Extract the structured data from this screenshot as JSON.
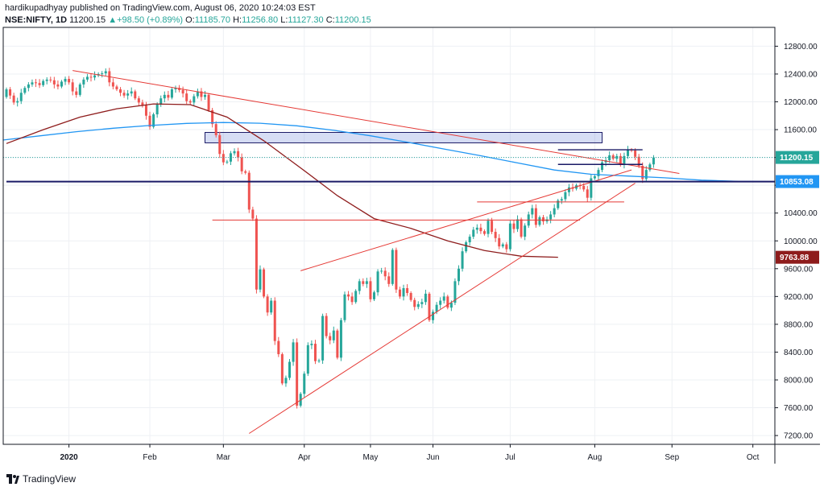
{
  "header": {
    "line1": "hardikupadhyay published on TradingView.com, August 06, 2020 10:24:03 EST",
    "symbol": "NSE:NIFTY, 1D",
    "last": "11200.15",
    "change": "+98.50 (+0.89%)",
    "o_label": "O:",
    "o_value": "11185.70",
    "h_label": "H:",
    "h_value": "11256.80",
    "l_label": "L:",
    "l_value": "11127.30",
    "c_label": "C:",
    "c_value": "11200.15"
  },
  "footer": {
    "brand": "TradingView"
  },
  "colors": {
    "up": "#26a69a",
    "down": "#ef5350",
    "ma_short": "#8e1c1c",
    "ma_long": "#2196f3",
    "trend": "#e53935",
    "level": "#1a1a66"
  },
  "chart_data": {
    "type": "candlestick",
    "x_labels": [
      "2020",
      "Feb",
      "Mar",
      "Apr",
      "May",
      "Jun",
      "Jul",
      "Aug",
      "Sep",
      "Oct"
    ],
    "y_ticks": [
      7200,
      7600,
      8000,
      8400,
      8800,
      9200,
      9600,
      10000,
      10400,
      10800,
      11200,
      11600,
      12000,
      12400,
      12800
    ],
    "y_tick_labels": [
      "7200.00",
      "7600.00",
      "8000.00",
      "8400.00",
      "8800.00",
      "9200.00",
      "9600.00",
      "10000.00",
      "10400.00",
      "10800.00",
      "11200.00",
      "11600.00",
      "12000.00",
      "12400.00",
      "12800.00"
    ],
    "ylim": [
      7000,
      12950
    ],
    "price_labels": [
      {
        "value": 11200.15,
        "text": "11200.15",
        "color": "#26a69a"
      },
      {
        "value": 10853.08,
        "text": "10853.08",
        "color": "#2196f3"
      },
      {
        "value": 9763.88,
        "text": "9763.88",
        "color": "#8e1c1c"
      }
    ],
    "closes": [
      12180,
      12090,
      11990,
      12010,
      12130,
      12200,
      12250,
      12280,
      12270,
      12240,
      12300,
      12320,
      12310,
      12250,
      12220,
      12290,
      12330,
      12280,
      12150,
      12100,
      12250,
      12320,
      12360,
      12350,
      12380,
      12400,
      12410,
      12440,
      12280,
      12220,
      12180,
      12130,
      12090,
      12120,
      12150,
      12050,
      11990,
      11950,
      11800,
      11640,
      11820,
      11960,
      12050,
      12100,
      12060,
      12180,
      12200,
      12170,
      12120,
      12010,
      11990,
      12080,
      12150,
      12070,
      12100,
      11880,
      11680,
      11520,
      11250,
      11130,
      11140,
      11260,
      11290,
      11200,
      11000,
      10980,
      10450,
      10320,
      9300,
      9590,
      9200,
      8970,
      9140,
      8560,
      8370,
      7950,
      8030,
      8260,
      8540,
      7630,
      7800,
      8090,
      8500,
      8520,
      8270,
      8280,
      8920,
      8630,
      8570,
      8710,
      8320,
      8860,
      9230,
      9200,
      9120,
      9280,
      9420,
      9380,
      9420,
      9160,
      9260,
      9560,
      9570,
      9490,
      9380,
      9870,
      9300,
      9200,
      9320,
      9250,
      9150,
      9050,
      9090,
      9120,
      9240,
      8860,
      8980,
      9080,
      9140,
      9200,
      9040,
      9110,
      9420,
      9600,
      9850,
      9980,
      10060,
      10160,
      10190,
      10140,
      10100,
      10290,
      10130,
      10040,
      9920,
      9950,
      9880,
      10250,
      10170,
      10310,
      10060,
      10220,
      10380,
      10470,
      10230,
      10340,
      10280,
      10310,
      10380,
      10470,
      10580,
      10600,
      10700,
      10770,
      10750,
      10800,
      10790,
      10740,
      10620,
      10900,
      10930,
      11020,
      11130,
      11160,
      11230,
      11180,
      11220,
      11100,
      11220,
      11310,
      11300,
      11210,
      11080,
      10890,
      11020,
      11100,
      11200
    ],
    "ma_long": [
      11450,
      11510,
      11570,
      11620,
      11660,
      11690,
      11702,
      11692,
      11655,
      11590,
      11512,
      11420,
      11322,
      11224,
      11121,
      11019,
      10958,
      10933,
      10907,
      10873,
      10856,
      10853
    ],
    "ma_short": [
      11400,
      11600,
      11780,
      11900,
      11970,
      11960,
      11780,
      11440,
      11050,
      10650,
      10320,
      10180,
      10000,
      9860,
      9780,
      9764
    ],
    "ranges": [
      {
        "from": 11410,
        "to": 11560
      }
    ],
    "lines": [
      {
        "from": [
          18,
          12450
        ],
        "to": [
          183,
          10970
        ]
      },
      {
        "from": [
          66,
          7230
        ],
        "to": [
          171,
          10830
        ]
      },
      {
        "from": [
          80,
          9570
        ],
        "to": [
          170,
          11020
        ]
      },
      {
        "from": [
          56,
          10300
        ],
        "to": [
          156,
          10300
        ]
      },
      {
        "from": [
          128,
          10560
        ],
        "to": [
          168,
          10560
        ]
      },
      {
        "from": [
          150,
          11310
        ],
        "to": [
          173,
          11310
        ]
      },
      {
        "from": [
          150,
          11100
        ],
        "to": [
          173,
          11100
        ]
      },
      {
        "from": 0,
        "to": 217,
        "value": 10853.08
      }
    ]
  }
}
